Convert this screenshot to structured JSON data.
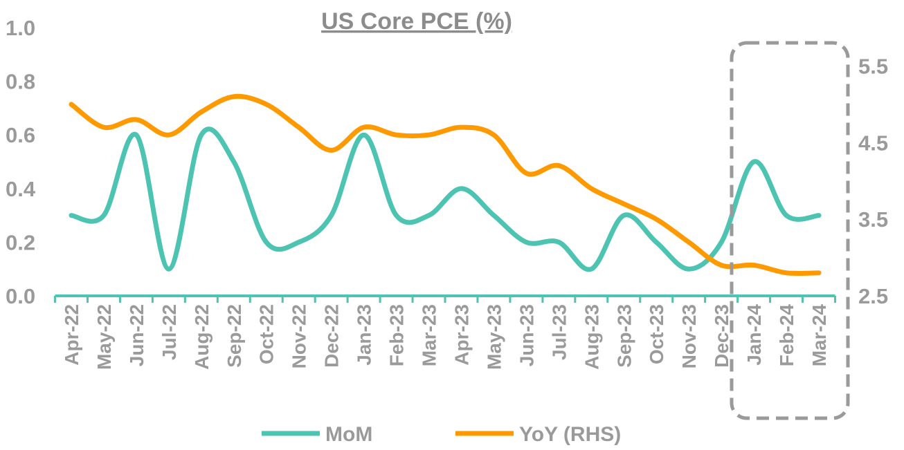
{
  "chart_data": {
    "type": "line",
    "title": "US Core PCE (%)",
    "categories": [
      "Apr-22",
      "May-22",
      "Jun-22",
      "Jul-22",
      "Aug-22",
      "Sep-22",
      "Oct-22",
      "Nov-22",
      "Dec-22",
      "Jan-23",
      "Feb-23",
      "Mar-23",
      "Apr-23",
      "May-23",
      "Jun-23",
      "Jul-23",
      "Aug-23",
      "Sep-23",
      "Oct-23",
      "Nov-23",
      "Dec-23",
      "Jan-24",
      "Feb-24",
      "Mar-24"
    ],
    "series": [
      {
        "name": "MoM",
        "axis": "left",
        "color": "#4dc3b1",
        "values": [
          0.3,
          0.3,
          0.6,
          0.1,
          0.6,
          0.5,
          0.2,
          0.2,
          0.3,
          0.6,
          0.3,
          0.3,
          0.4,
          0.3,
          0.2,
          0.2,
          0.1,
          0.3,
          0.2,
          0.1,
          0.2,
          0.5,
          0.3,
          0.3
        ]
      },
      {
        "name": "YoY (RHS)",
        "axis": "right",
        "color": "#ff9900",
        "values": [
          5.0,
          4.7,
          4.8,
          4.6,
          4.9,
          5.1,
          5.0,
          4.7,
          4.4,
          4.7,
          4.6,
          4.6,
          4.7,
          4.6,
          4.1,
          4.2,
          3.9,
          3.7,
          3.5,
          3.2,
          2.9,
          2.9,
          2.8,
          2.8
        ]
      }
    ],
    "y_left": {
      "range": [
        0,
        1.0
      ],
      "ticks": [
        "0.0",
        "0.2",
        "0.4",
        "0.6",
        "0.8",
        "1.0"
      ]
    },
    "y_right": {
      "range": [
        2.5,
        6.0
      ],
      "ticks": [
        "2.5",
        "3.5",
        "4.5",
        "5.5"
      ]
    },
    "grid": false,
    "legend_position": "bottom",
    "highlight": {
      "from": "Jan-24",
      "to": "Mar-24",
      "style": "dashed-box",
      "color": "#9a9a9a"
    },
    "axis_color": "#4dc3b1",
    "text_color": "#9a9a9a"
  }
}
